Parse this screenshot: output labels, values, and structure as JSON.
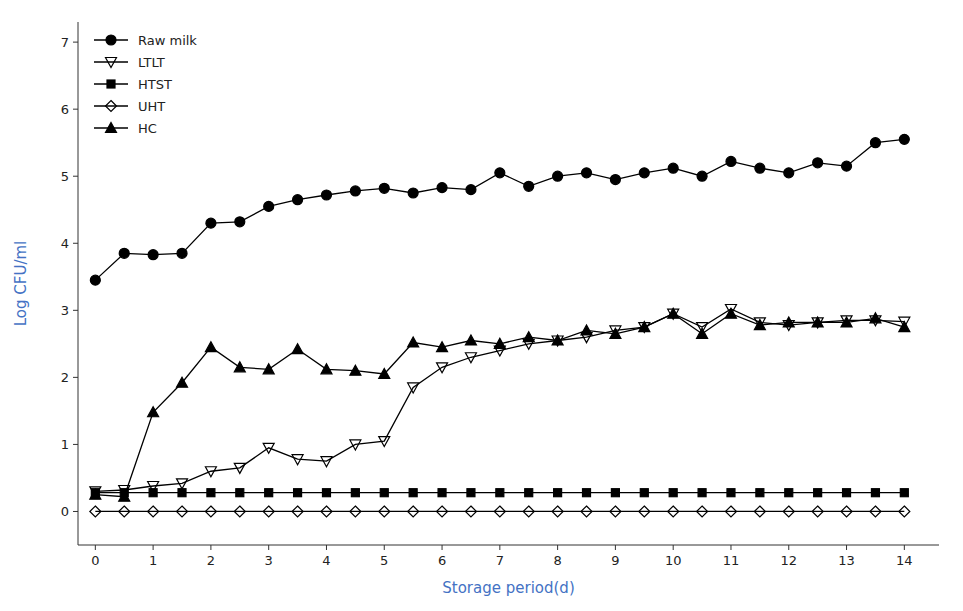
{
  "chart_data": {
    "type": "line",
    "xlabel": "Storage period(d)",
    "ylabel": "Log CFU/ml",
    "x": [
      0,
      0.5,
      1,
      1.5,
      2,
      2.5,
      3,
      3.5,
      4,
      4.5,
      5,
      5.5,
      6,
      6.5,
      7,
      7.5,
      8,
      8.5,
      9,
      9.5,
      10,
      10.5,
      11,
      11.5,
      12,
      12.5,
      13,
      13.5,
      14
    ],
    "xlim": [
      -0.3,
      14.6
    ],
    "ylim": [
      -0.5,
      7.3
    ],
    "xticks": [
      0,
      1,
      2,
      3,
      4,
      5,
      6,
      7,
      8,
      9,
      10,
      11,
      12,
      13,
      14
    ],
    "yticks": [
      0,
      1,
      2,
      3,
      4,
      5,
      6,
      7
    ],
    "legend": "upper left",
    "grid": false,
    "series": [
      {
        "name": "Raw milk",
        "color": "black",
        "marker": "filled-circle",
        "values": [
          3.45,
          3.85,
          3.83,
          3.85,
          4.3,
          4.32,
          4.55,
          4.65,
          4.72,
          4.78,
          4.82,
          4.75,
          4.83,
          4.8,
          5.05,
          4.85,
          5.0,
          5.05,
          4.95,
          5.05,
          5.12,
          5.0,
          5.22,
          5.12,
          5.05,
          5.2,
          5.15,
          5.5,
          5.55
        ]
      },
      {
        "name": "LTLT",
        "color": "black",
        "marker": "open-triangle-down",
        "values": [
          0.3,
          0.32,
          0.38,
          0.42,
          0.6,
          0.65,
          0.95,
          0.78,
          0.75,
          1.0,
          1.05,
          1.85,
          2.15,
          2.3,
          2.4,
          2.5,
          2.55,
          2.6,
          2.7,
          2.75,
          2.95,
          2.75,
          3.02,
          2.82,
          2.78,
          2.82,
          2.85,
          2.85,
          2.83
        ]
      },
      {
        "name": "HTST",
        "color": "black",
        "marker": "filled-square",
        "values": [
          0.28,
          0.28,
          0.28,
          0.28,
          0.28,
          0.28,
          0.28,
          0.28,
          0.28,
          0.28,
          0.28,
          0.28,
          0.28,
          0.28,
          0.28,
          0.28,
          0.28,
          0.28,
          0.28,
          0.28,
          0.28,
          0.28,
          0.28,
          0.28,
          0.28,
          0.28,
          0.28,
          0.28,
          0.28
        ]
      },
      {
        "name": "UHT",
        "color": "black",
        "marker": "open-diamond",
        "values": [
          0.0,
          0.0,
          0.0,
          0.0,
          0.0,
          0.0,
          0.0,
          0.0,
          0.0,
          0.0,
          0.0,
          0.0,
          0.0,
          0.0,
          0.0,
          0.0,
          0.0,
          0.0,
          0.0,
          0.0,
          0.0,
          0.0,
          0.0,
          0.0,
          0.0,
          0.0,
          0.0,
          0.0,
          0.0
        ]
      },
      {
        "name": "HC",
        "color": "black",
        "marker": "filled-triangle-up",
        "values": [
          0.25,
          0.22,
          1.48,
          1.92,
          2.45,
          2.15,
          2.12,
          2.42,
          2.12,
          2.1,
          2.05,
          2.52,
          2.45,
          2.55,
          2.5,
          2.6,
          2.55,
          2.7,
          2.65,
          2.75,
          2.95,
          2.65,
          2.95,
          2.78,
          2.82,
          2.82,
          2.82,
          2.88,
          2.75
        ]
      }
    ]
  }
}
